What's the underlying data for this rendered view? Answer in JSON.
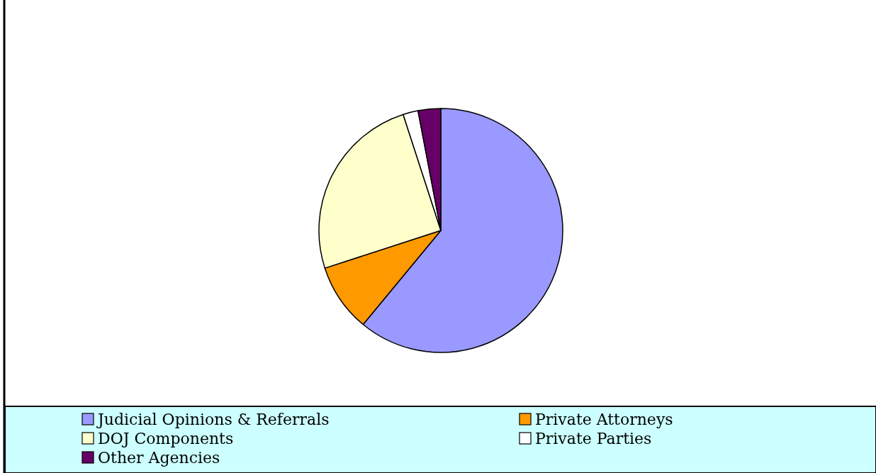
{
  "chart_data": {
    "type": "pie",
    "categories": [
      "Judicial Opinions & Referrals",
      "Private Attorneys",
      "DOJ Components",
      "Private Parties",
      "Other Agencies"
    ],
    "values": [
      61,
      9,
      25,
      2,
      3
    ],
    "colors": [
      "#9999ff",
      "#ff9900",
      "#ffffcc",
      "#ffffff",
      "#660066"
    ],
    "legend": "bottom"
  }
}
